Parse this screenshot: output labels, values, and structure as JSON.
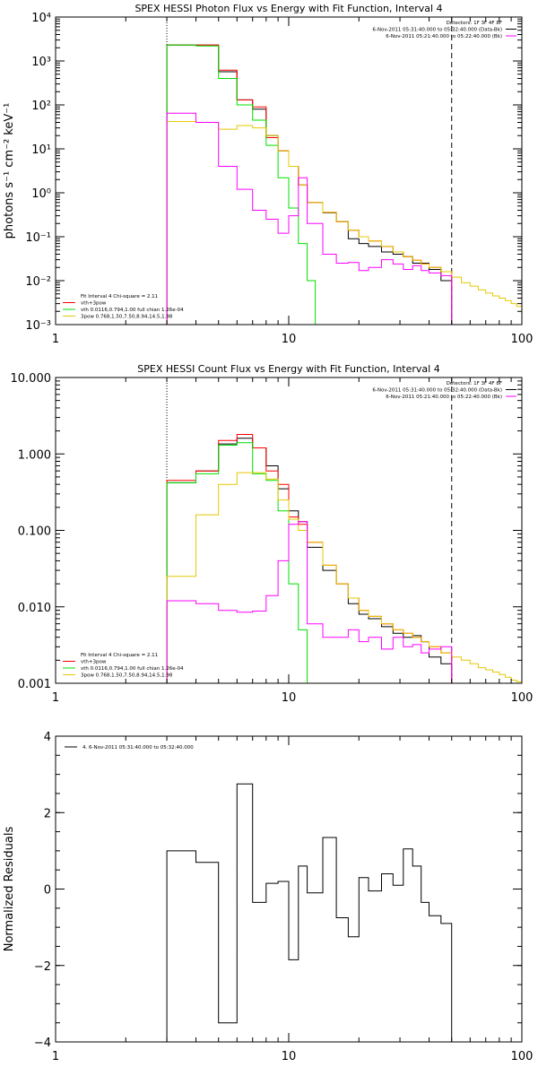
{
  "colors": {
    "data": "#000000",
    "total": "#ff0000",
    "vth": "#00e000",
    "bpow": "#e6c800",
    "bk": "#ff00ff"
  },
  "chart_data": [
    {
      "type": "line",
      "title": "SPEX HESSI Photon Flux vs Energy with Fit Function, Interval 4",
      "ylabel": "photons s⁻¹ cm⁻² keV⁻¹",
      "xlabel": "",
      "xscale": "log",
      "yscale": "log",
      "xlim": [
        1,
        100
      ],
      "ylim": [
        0.001,
        10000
      ],
      "xticks": [
        {
          "v": 1,
          "label": "1"
        },
        {
          "v": 10,
          "label": "10"
        },
        {
          "v": 100,
          "label": "100"
        }
      ],
      "yticks": [
        {
          "v": 0.001,
          "label": "10⁻³"
        },
        {
          "v": 0.01,
          "label": "10⁻²"
        },
        {
          "v": 0.1,
          "label": "10⁻¹"
        },
        {
          "v": 1,
          "label": "10⁰"
        },
        {
          "v": 10,
          "label": "10¹"
        },
        {
          "v": 100,
          "label": "10²"
        },
        {
          "v": 1000,
          "label": "10³"
        },
        {
          "v": 10000,
          "label": "10⁴"
        }
      ],
      "fit_range": [
        3,
        50
      ],
      "legend_topright": [
        {
          "text": "Detectors: 1F 3F 4F 8F",
          "color": ""
        },
        {
          "text": "6-Nov-2011 05:31:40.000 to 05:32:40.000 (Data-Bk)",
          "color": "#000000"
        },
        {
          "text": "6-Nov-2011 05:21:40.000 to 05:22:40.000 (Bk)",
          "color": "#ff00ff"
        }
      ],
      "legend_bottomleft": [
        {
          "text": "Fit Interval 4   Chi-square = 2.11",
          "color": ""
        },
        {
          "text": "vth+3pow",
          "color": "#ff0000"
        },
        {
          "text": "vth 0.0116,0.794,1.00  full chian 1.26e-04",
          "color": "#00e000"
        },
        {
          "text": "3pow 0.768,1.50,7.50,8.94,14.5,1.98",
          "color": "#e6c800"
        }
      ],
      "series": [
        {
          "name": "Data-Bk",
          "color": "#000000",
          "edges": [
            3,
            4,
            5,
            6,
            7,
            8,
            9,
            10,
            11,
            12,
            14,
            16,
            18,
            20,
            22,
            25,
            28,
            31,
            34,
            37,
            40,
            45,
            50
          ],
          "values": [
            2300,
            2300,
            570,
            130,
            80,
            20,
            9,
            4,
            1.5,
            0.6,
            0.35,
            0.22,
            0.09,
            0.07,
            0.06,
            0.045,
            0.04,
            0.035,
            0.025,
            0.025,
            0.018,
            0.01
          ]
        },
        {
          "name": "vth+3pow",
          "color": "#ff0000",
          "edges": [
            3,
            4,
            5,
            6,
            7,
            8,
            9,
            10,
            11,
            12,
            14,
            16,
            18,
            20,
            22,
            25,
            28,
            31,
            34,
            37,
            40,
            45,
            50
          ],
          "values": [
            2300,
            2300,
            620,
            130,
            90,
            18,
            9,
            4,
            1.5,
            0.6,
            0.36,
            0.22,
            0.14,
            0.1,
            0.08,
            0.06,
            0.045,
            0.035,
            0.029,
            0.024,
            0.02,
            0.016
          ]
        },
        {
          "name": "vth",
          "color": "#00e000",
          "edges": [
            3,
            4,
            5,
            6,
            7,
            8,
            9,
            10,
            11,
            12,
            13
          ],
          "values": [
            2300,
            2200,
            400,
            100,
            45,
            12,
            2.2,
            0.45,
            0.07,
            0.01
          ]
        },
        {
          "name": "3pow",
          "color": "#e6c800",
          "edges": [
            3,
            4,
            5,
            6,
            7,
            8,
            9,
            10,
            11,
            12,
            14,
            16,
            18,
            20,
            22,
            25,
            28,
            31,
            34,
            37,
            40,
            45,
            50,
            55,
            60,
            65,
            70,
            75,
            80,
            85,
            90,
            95,
            100
          ],
          "values": [
            42,
            40,
            28,
            34,
            30,
            20,
            9,
            4,
            1.5,
            0.6,
            0.36,
            0.22,
            0.14,
            0.1,
            0.08,
            0.06,
            0.045,
            0.035,
            0.029,
            0.024,
            0.02,
            0.016,
            0.012,
            0.009,
            0.0075,
            0.0062,
            0.0052,
            0.0045,
            0.004,
            0.0035,
            0.003,
            0.0026
          ]
        },
        {
          "name": "Bk",
          "color": "#ff00ff",
          "edges": [
            3,
            4,
            5,
            6,
            7,
            8,
            9,
            10,
            11,
            12,
            14,
            16,
            18,
            20,
            22,
            25,
            28,
            31,
            34,
            37,
            40,
            45,
            50
          ],
          "values": [
            65,
            40,
            4,
            1.2,
            0.4,
            0.25,
            0.12,
            0.3,
            2.2,
            0.2,
            0.04,
            0.025,
            0.026,
            0.017,
            0.02,
            0.03,
            0.024,
            0.018,
            0.022,
            0.017,
            0.015,
            0.013
          ]
        }
      ]
    },
    {
      "type": "line",
      "title": "SPEX HESSI Count Flux vs Energy with Fit Function, Interval 4",
      "ylabel": "",
      "xlabel": "",
      "xscale": "log",
      "yscale": "log",
      "xlim": [
        1,
        100
      ],
      "ylim": [
        0.001,
        10
      ],
      "xticks": [
        {
          "v": 1,
          "label": "1"
        },
        {
          "v": 10,
          "label": "10"
        },
        {
          "v": 100,
          "label": "100"
        }
      ],
      "yticks": [
        {
          "v": 0.001,
          "label": "0.001"
        },
        {
          "v": 0.01,
          "label": "0.010"
        },
        {
          "v": 0.1,
          "label": "0.100"
        },
        {
          "v": 1,
          "label": "1.000"
        },
        {
          "v": 10,
          "label": "10.000"
        }
      ],
      "fit_range": [
        3,
        50
      ],
      "legend_topright": [
        {
          "text": "Detectors: 1F 3F 4F 8F",
          "color": ""
        },
        {
          "text": "6-Nov-2011 05:31:40.000 to 05:32:40.000 (Data-Bk)",
          "color": "#000000"
        },
        {
          "text": "6-Nov-2011 05:21:40.000 to 05:22:40.000 (Bk)",
          "color": "#ff00ff"
        }
      ],
      "legend_bottomleft": [
        {
          "text": "Fit Interval 4   Chi-square = 2.11",
          "color": ""
        },
        {
          "text": "vth+3pow",
          "color": "#ff0000"
        },
        {
          "text": "vth 0.0116,0.794,1.00  full chian 1.26e-04",
          "color": "#00e000"
        },
        {
          "text": "3pow 0.768,1.50,7.50,8.94,14.5,1.98",
          "color": "#e6c800"
        }
      ],
      "series": [
        {
          "name": "Data-Bk",
          "color": "#000000",
          "edges": [
            3,
            4,
            5,
            6,
            7,
            8,
            9,
            10,
            11,
            12,
            14,
            16,
            18,
            20,
            22,
            25,
            28,
            31,
            34,
            37,
            40,
            45,
            50
          ],
          "values": [
            0.42,
            0.6,
            1.35,
            1.6,
            1.2,
            0.7,
            0.35,
            0.18,
            0.13,
            0.06,
            0.03,
            0.02,
            0.011,
            0.008,
            0.007,
            0.0055,
            0.0045,
            0.004,
            0.0042,
            0.0035,
            0.0022,
            0.0018
          ]
        },
        {
          "name": "vth+3pow",
          "color": "#ff0000",
          "edges": [
            3,
            4,
            5,
            6,
            7,
            8,
            9,
            10,
            11,
            12,
            14,
            16,
            18,
            20,
            22,
            25,
            28,
            31,
            34,
            37,
            40,
            45,
            50
          ],
          "values": [
            0.45,
            0.6,
            1.5,
            1.8,
            1.2,
            0.6,
            0.4,
            0.15,
            0.12,
            0.07,
            0.035,
            0.02,
            0.013,
            0.009,
            0.0075,
            0.006,
            0.005,
            0.0045,
            0.004,
            0.0035,
            0.003,
            0.0025
          ]
        },
        {
          "name": "vth",
          "color": "#00e000",
          "edges": [
            3,
            4,
            5,
            6,
            7,
            8,
            9,
            10,
            11,
            12,
            13
          ],
          "values": [
            0.42,
            0.55,
            1.3,
            1.4,
            0.55,
            0.45,
            0.18,
            0.02,
            0.005,
            0.0009
          ]
        },
        {
          "name": "3pow",
          "color": "#e6c800",
          "edges": [
            3,
            4,
            5,
            6,
            7,
            8,
            9,
            10,
            11,
            12,
            14,
            16,
            18,
            20,
            22,
            25,
            28,
            31,
            34,
            37,
            40,
            45,
            50,
            55,
            60,
            65,
            70,
            75,
            80,
            85,
            90,
            95,
            100
          ],
          "values": [
            0.025,
            0.16,
            0.4,
            0.57,
            0.57,
            0.47,
            0.25,
            0.14,
            0.1,
            0.07,
            0.035,
            0.02,
            0.013,
            0.009,
            0.0075,
            0.006,
            0.005,
            0.0045,
            0.004,
            0.0035,
            0.003,
            0.0025,
            0.0022,
            0.002,
            0.0018,
            0.0016,
            0.0015,
            0.0014,
            0.0013,
            0.0012,
            0.0011,
            0.00105
          ]
        },
        {
          "name": "Bk",
          "color": "#ff00ff",
          "edges": [
            3,
            4,
            5,
            6,
            7,
            8,
            9,
            10,
            11,
            12,
            14,
            16,
            18,
            20,
            22,
            25,
            28,
            31,
            34,
            37,
            40,
            45,
            50
          ],
          "values": [
            0.012,
            0.011,
            0.009,
            0.0085,
            0.0088,
            0.014,
            0.04,
            0.12,
            0.13,
            0.006,
            0.004,
            0.004,
            0.005,
            0.0035,
            0.004,
            0.0028,
            0.004,
            0.003,
            0.0032,
            0.0025,
            0.0028,
            0.003
          ]
        }
      ]
    },
    {
      "type": "line",
      "title": "",
      "ylabel": "Normalized Residuals",
      "xlabel": "",
      "xscale": "log",
      "yscale": "linear",
      "xlim": [
        1,
        100
      ],
      "ylim": [
        -4,
        4
      ],
      "xticks": [
        {
          "v": 1,
          "label": "1"
        },
        {
          "v": 10,
          "label": "10"
        },
        {
          "v": 100,
          "label": "100"
        }
      ],
      "yticks": [
        {
          "v": -4,
          "label": "−4"
        },
        {
          "v": -2,
          "label": "−2"
        },
        {
          "v": 0,
          "label": "0"
        },
        {
          "v": 2,
          "label": "2"
        },
        {
          "v": 4,
          "label": "4"
        }
      ],
      "legend_topleft": [
        {
          "text": "4.  6-Nov-2011 05:31:40.000 to 05:32:40.000",
          "color": "#000000"
        }
      ],
      "series": [
        {
          "name": "4.  6-Nov-2011 05:31:40.000 to 05:32:40.000",
          "color": "#000000",
          "edges": [
            3,
            4,
            5,
            6,
            7,
            8,
            9,
            10,
            11,
            12,
            14,
            16,
            18,
            20,
            22,
            25,
            28,
            31,
            34,
            37,
            40,
            45,
            50
          ],
          "values": [
            1.0,
            0.7,
            -3.5,
            2.75,
            -0.35,
            0.15,
            0.2,
            -1.85,
            0.6,
            -0.1,
            1.35,
            -0.75,
            -1.25,
            0.3,
            -0.05,
            0.4,
            0.1,
            1.05,
            0.6,
            -0.35,
            -0.7,
            -0.9
          ]
        }
      ]
    }
  ]
}
